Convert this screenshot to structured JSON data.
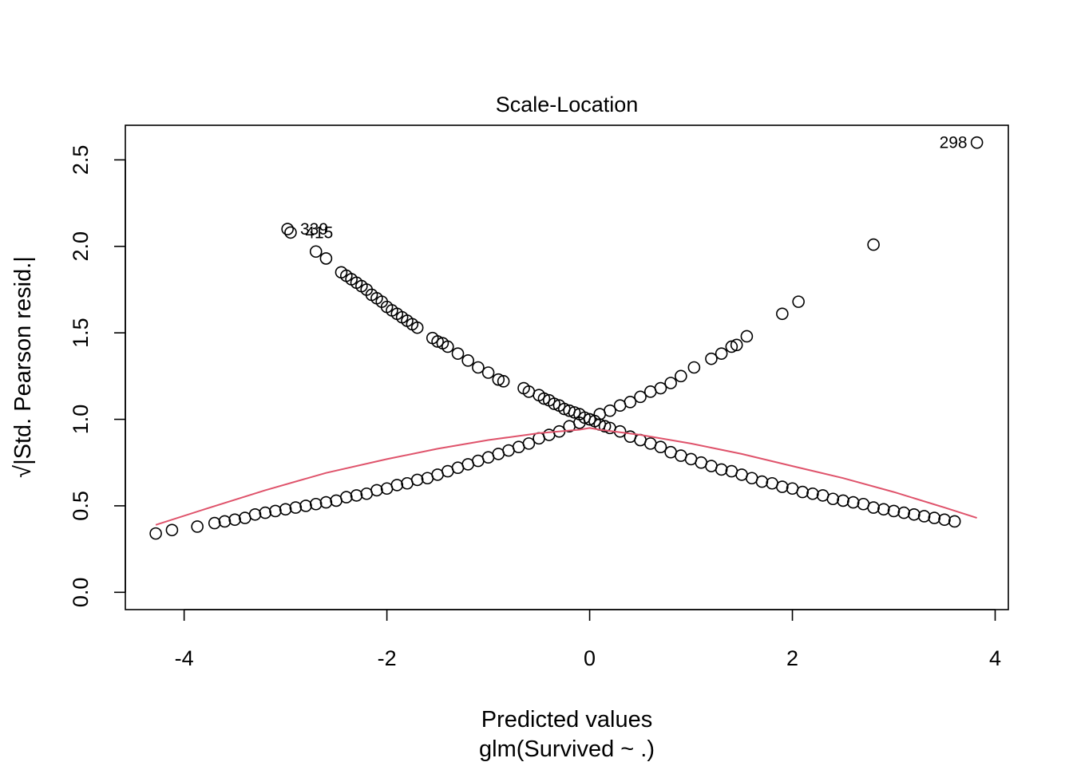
{
  "chart_data": {
    "type": "scatter",
    "title": "Scale-Location",
    "xlabel": "Predicted values",
    "xlabel_sub": "glm(Survived ~ .)",
    "ylabel": "√|Std. Pearson resid.|",
    "xlim": [
      -4.58,
      4.13
    ],
    "ylim": [
      -0.1,
      2.7
    ],
    "xticks": [
      -4,
      -2,
      0,
      2,
      4
    ],
    "xtick_labels": [
      "-4",
      "-2",
      "0",
      "2",
      "4"
    ],
    "yticks": [
      0.0,
      0.5,
      1.0,
      1.5,
      2.0,
      2.5
    ],
    "ytick_labels": [
      "0.0",
      "0.5",
      "1.0",
      "1.5",
      "2.0",
      "2.5"
    ],
    "grid": false,
    "colors": {
      "points": "#000000",
      "smooth_line": "#DF536B"
    },
    "series": [
      {
        "role": "survived",
        "x": [
          -2.95,
          -2.7,
          -2.6,
          -2.45,
          -2.4,
          -2.35,
          -2.3,
          -2.25,
          -2.2,
          -2.15,
          -2.1,
          -2.05,
          -2.0,
          -1.95,
          -1.9,
          -1.85,
          -1.8,
          -1.75,
          -1.7,
          -1.55,
          -1.5,
          -1.45,
          -1.4,
          -1.3,
          -1.2,
          -1.1,
          -1.0,
          -0.9,
          -0.85,
          -0.65,
          -0.6,
          -0.5,
          -0.45,
          -0.4,
          -0.35,
          -0.3,
          -0.25,
          -0.2,
          -0.15,
          -0.1,
          -0.05,
          0.0,
          0.05,
          0.1,
          0.15,
          0.2,
          0.3,
          0.4,
          0.5,
          0.6,
          0.7,
          0.8,
          0.9,
          1.0,
          1.1,
          1.2,
          1.3,
          1.4,
          1.5,
          1.6,
          1.7,
          1.8,
          1.9,
          2.0,
          2.1,
          2.2,
          2.3,
          2.4,
          2.5,
          2.6,
          2.7,
          2.8,
          2.9,
          3.0,
          3.1,
          3.2,
          3.3,
          3.4,
          3.5,
          3.6
        ],
        "y": [
          2.08,
          1.97,
          1.93,
          1.85,
          1.83,
          1.81,
          1.79,
          1.77,
          1.75,
          1.72,
          1.7,
          1.68,
          1.65,
          1.63,
          1.61,
          1.59,
          1.57,
          1.55,
          1.53,
          1.47,
          1.45,
          1.44,
          1.42,
          1.38,
          1.34,
          1.3,
          1.27,
          1.23,
          1.22,
          1.18,
          1.16,
          1.14,
          1.12,
          1.11,
          1.09,
          1.08,
          1.06,
          1.05,
          1.04,
          1.03,
          1.01,
          1.0,
          0.99,
          0.97,
          0.96,
          0.95,
          0.93,
          0.9,
          0.88,
          0.86,
          0.84,
          0.81,
          0.79,
          0.77,
          0.75,
          0.73,
          0.71,
          0.7,
          0.68,
          0.66,
          0.64,
          0.63,
          0.61,
          0.6,
          0.58,
          0.57,
          0.56,
          0.54,
          0.53,
          0.52,
          0.51,
          0.49,
          0.48,
          0.47,
          0.46,
          0.45,
          0.44,
          0.43,
          0.42,
          0.41
        ]
      },
      {
        "role": "died",
        "x": [
          -4.28,
          -4.12,
          -3.87,
          -3.7,
          -3.6,
          -3.5,
          -3.4,
          -3.3,
          -3.2,
          -3.1,
          -3.0,
          -2.9,
          -2.8,
          -2.7,
          -2.6,
          -2.5,
          -2.4,
          -2.3,
          -2.2,
          -2.1,
          -2.0,
          -1.9,
          -1.8,
          -1.7,
          -1.6,
          -1.5,
          -1.4,
          -1.3,
          -1.2,
          -1.1,
          -1.0,
          -0.9,
          -0.8,
          -0.7,
          -0.6,
          -0.5,
          -0.4,
          -0.3,
          -0.2,
          -0.1,
          0.0,
          0.1,
          0.2,
          0.3,
          0.4,
          0.5,
          0.6,
          0.7,
          0.8,
          0.9,
          1.03,
          1.2,
          1.3,
          1.4,
          1.45,
          1.55,
          1.9,
          2.06,
          2.8,
          3.82
        ],
        "y": [
          0.34,
          0.36,
          0.38,
          0.4,
          0.41,
          0.42,
          0.43,
          0.45,
          0.46,
          0.47,
          0.48,
          0.49,
          0.5,
          0.51,
          0.52,
          0.53,
          0.55,
          0.56,
          0.57,
          0.59,
          0.6,
          0.62,
          0.63,
          0.65,
          0.66,
          0.68,
          0.7,
          0.72,
          0.74,
          0.76,
          0.78,
          0.8,
          0.82,
          0.84,
          0.86,
          0.89,
          0.91,
          0.93,
          0.96,
          0.98,
          1.0,
          1.03,
          1.05,
          1.08,
          1.1,
          1.13,
          1.16,
          1.18,
          1.21,
          1.25,
          1.3,
          1.35,
          1.38,
          1.42,
          1.43,
          1.48,
          1.61,
          1.68,
          2.01,
          2.6
        ]
      }
    ],
    "extra_points": {
      "x": [
        -2.98
      ],
      "y": [
        2.1
      ]
    },
    "smooth": {
      "x": [
        -4.28,
        -3.8,
        -3.2,
        -2.6,
        -2.0,
        -1.5,
        -1.0,
        -0.5,
        -0.1,
        0.0,
        0.1,
        0.5,
        1.0,
        1.5,
        2.0,
        2.5,
        3.0,
        3.5,
        3.82
      ],
      "y": [
        0.39,
        0.48,
        0.59,
        0.69,
        0.77,
        0.83,
        0.88,
        0.92,
        0.94,
        0.95,
        0.94,
        0.91,
        0.86,
        0.8,
        0.73,
        0.66,
        0.58,
        0.49,
        0.43
      ]
    },
    "annotations": [
      {
        "text": "298",
        "x": 3.82,
        "y": 2.6,
        "anchor": "end"
      },
      {
        "text": "339",
        "x": -2.95,
        "y": 2.1,
        "anchor": "start"
      },
      {
        "text": "415",
        "x": -2.9,
        "y": 2.08,
        "anchor": "start"
      }
    ]
  }
}
